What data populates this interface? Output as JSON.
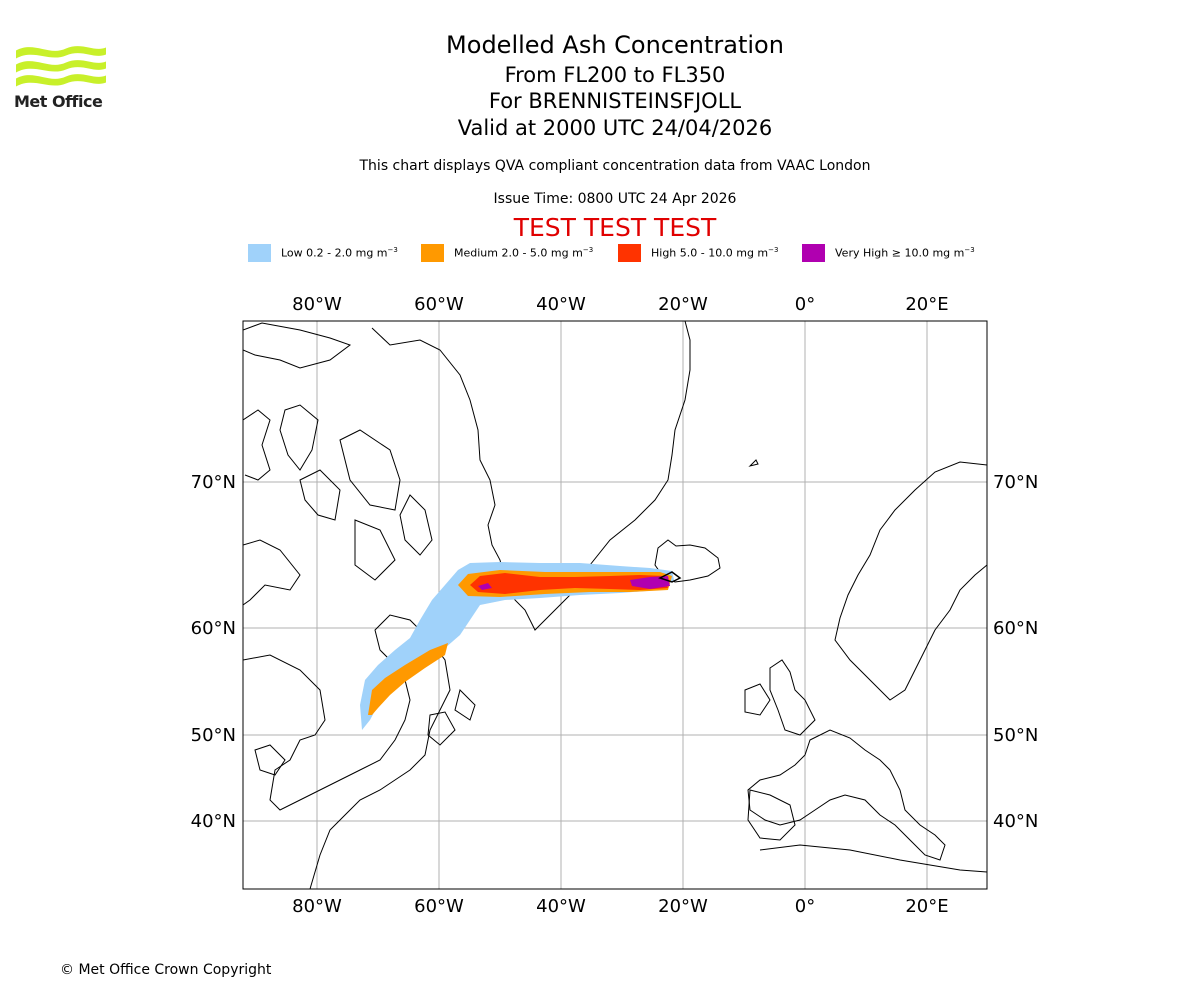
{
  "header": {
    "logo_text": "Met Office",
    "title": "Modelled Ash Concentration",
    "flight_levels": "From FL200 to FL350",
    "volcano": "For BRENNISTEINSFJOLL",
    "valid_time": "Valid at 2000 UTC 24/04/2026",
    "note": "This chart displays QVA compliant concentration data from VAAC London",
    "issue_time": "Issue Time: 0800 UTC 24 Apr 2026",
    "test_banner": "TEST TEST TEST"
  },
  "legend": [
    {
      "label": "Low 0.2 - 2.0 mg m",
      "exp": "−3",
      "color": "#a0d2fa"
    },
    {
      "label": "Medium 2.0 - 5.0 mg m",
      "exp": "−3",
      "color": "#ff9900"
    },
    {
      "label": "High 5.0 - 10.0 mg m",
      "exp": "−3",
      "color": "#ff3300"
    },
    {
      "label": "Very High ≥ 10.0 mg m",
      "exp": "−3",
      "color": "#b000b0"
    }
  ],
  "map": {
    "lon_labels": [
      "80°W",
      "60°W",
      "40°W",
      "20°W",
      "0°",
      "20°E"
    ],
    "lat_labels": [
      "70°N",
      "60°N",
      "50°N",
      "40°N"
    ],
    "grid": true,
    "plume_colors": {
      "low": "#a0d2fa",
      "medium": "#ff9900",
      "high": "#ff3300",
      "very_high": "#b000b0"
    }
  },
  "footer": {
    "copyright": "© Met Office Crown Copyright"
  }
}
